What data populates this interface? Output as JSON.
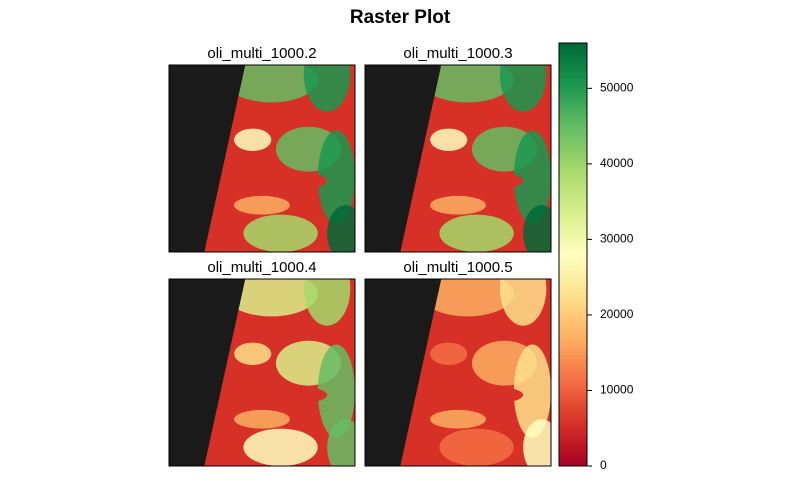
{
  "chart_data": {
    "type": "raster",
    "title": "Raster Plot",
    "panels": [
      "oli_multi_1000.2",
      "oli_multi_1000.3",
      "oli_multi_1000.4",
      "oli_multi_1000.5"
    ],
    "zlim": [
      0,
      56000
    ],
    "zticks": [
      0,
      10000,
      20000,
      30000,
      40000,
      50000
    ],
    "colorscale": [
      "#a50026",
      "#d73027",
      "#f46d43",
      "#fdae61",
      "#fee08b",
      "#ffffbf",
      "#d9ef8b",
      "#a6d96a",
      "#66bd63",
      "#1a9850",
      "#006837"
    ],
    "nodata_color": "#1a1a1a"
  }
}
